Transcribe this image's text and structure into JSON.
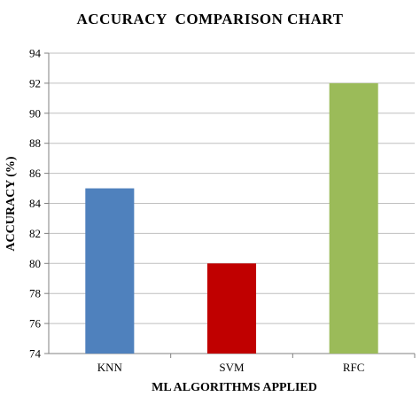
{
  "chart_data": {
    "type": "bar",
    "title": "ACCURACY  COMPARISON CHART",
    "xlabel": "ML ALGORITHMS APPLIED",
    "ylabel": "ACCURACY (%)",
    "categories": [
      "KNN",
      "SVM",
      "RFC"
    ],
    "values": [
      85,
      80,
      92
    ],
    "bar_colors": [
      "#4f81bd",
      "#c00000",
      "#9bbb59"
    ],
    "ylim": [
      74,
      94
    ],
    "yticks": [
      74,
      76,
      78,
      80,
      82,
      84,
      86,
      88,
      90,
      92,
      94
    ],
    "grid": true,
    "legend": "none"
  }
}
